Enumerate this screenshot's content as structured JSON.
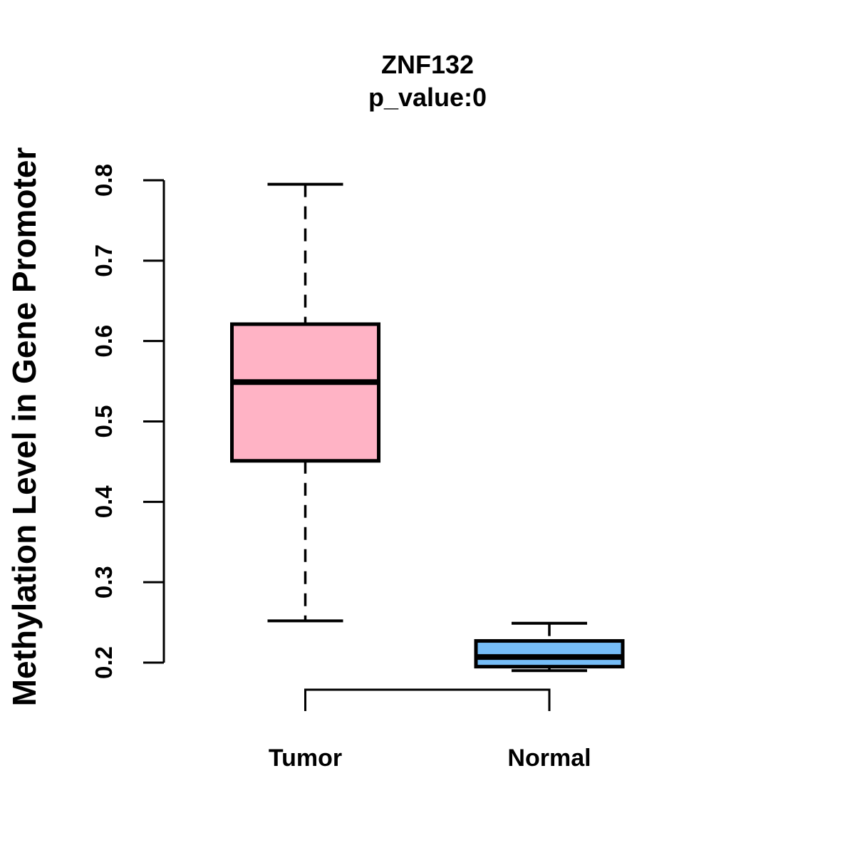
{
  "page": {
    "background_color": "#FFFFFF",
    "text_color": "#000000"
  },
  "chart_data": {
    "type": "boxplot",
    "title": "ZNF132",
    "subtitle": "p_value:0",
    "ylabel": "Methylation Level in Gene Promoter",
    "xlabel": "",
    "ylim": [
      0.2,
      0.8
    ],
    "yticks": [
      0.2,
      0.3,
      0.4,
      0.5,
      0.6,
      0.7,
      0.8
    ],
    "ytick_labels": [
      "0.2",
      "0.3",
      "0.4",
      "0.5",
      "0.6",
      "0.7",
      "0.8"
    ],
    "grid": false,
    "legend": "none",
    "stroke_color": "#000000",
    "whisker_style": "dashed",
    "groups": [
      {
        "label": "Tumor",
        "fill_color": "#FFB3C5",
        "whisker_low": 0.252,
        "q1": 0.451,
        "median": 0.549,
        "q3": 0.621,
        "whisker_high": 0.795
      },
      {
        "label": "Normal",
        "fill_color": "#76BDF7",
        "whisker_low": 0.19,
        "q1": 0.195,
        "median": 0.207,
        "q3": 0.227,
        "whisker_high": 0.249
      }
    ]
  }
}
